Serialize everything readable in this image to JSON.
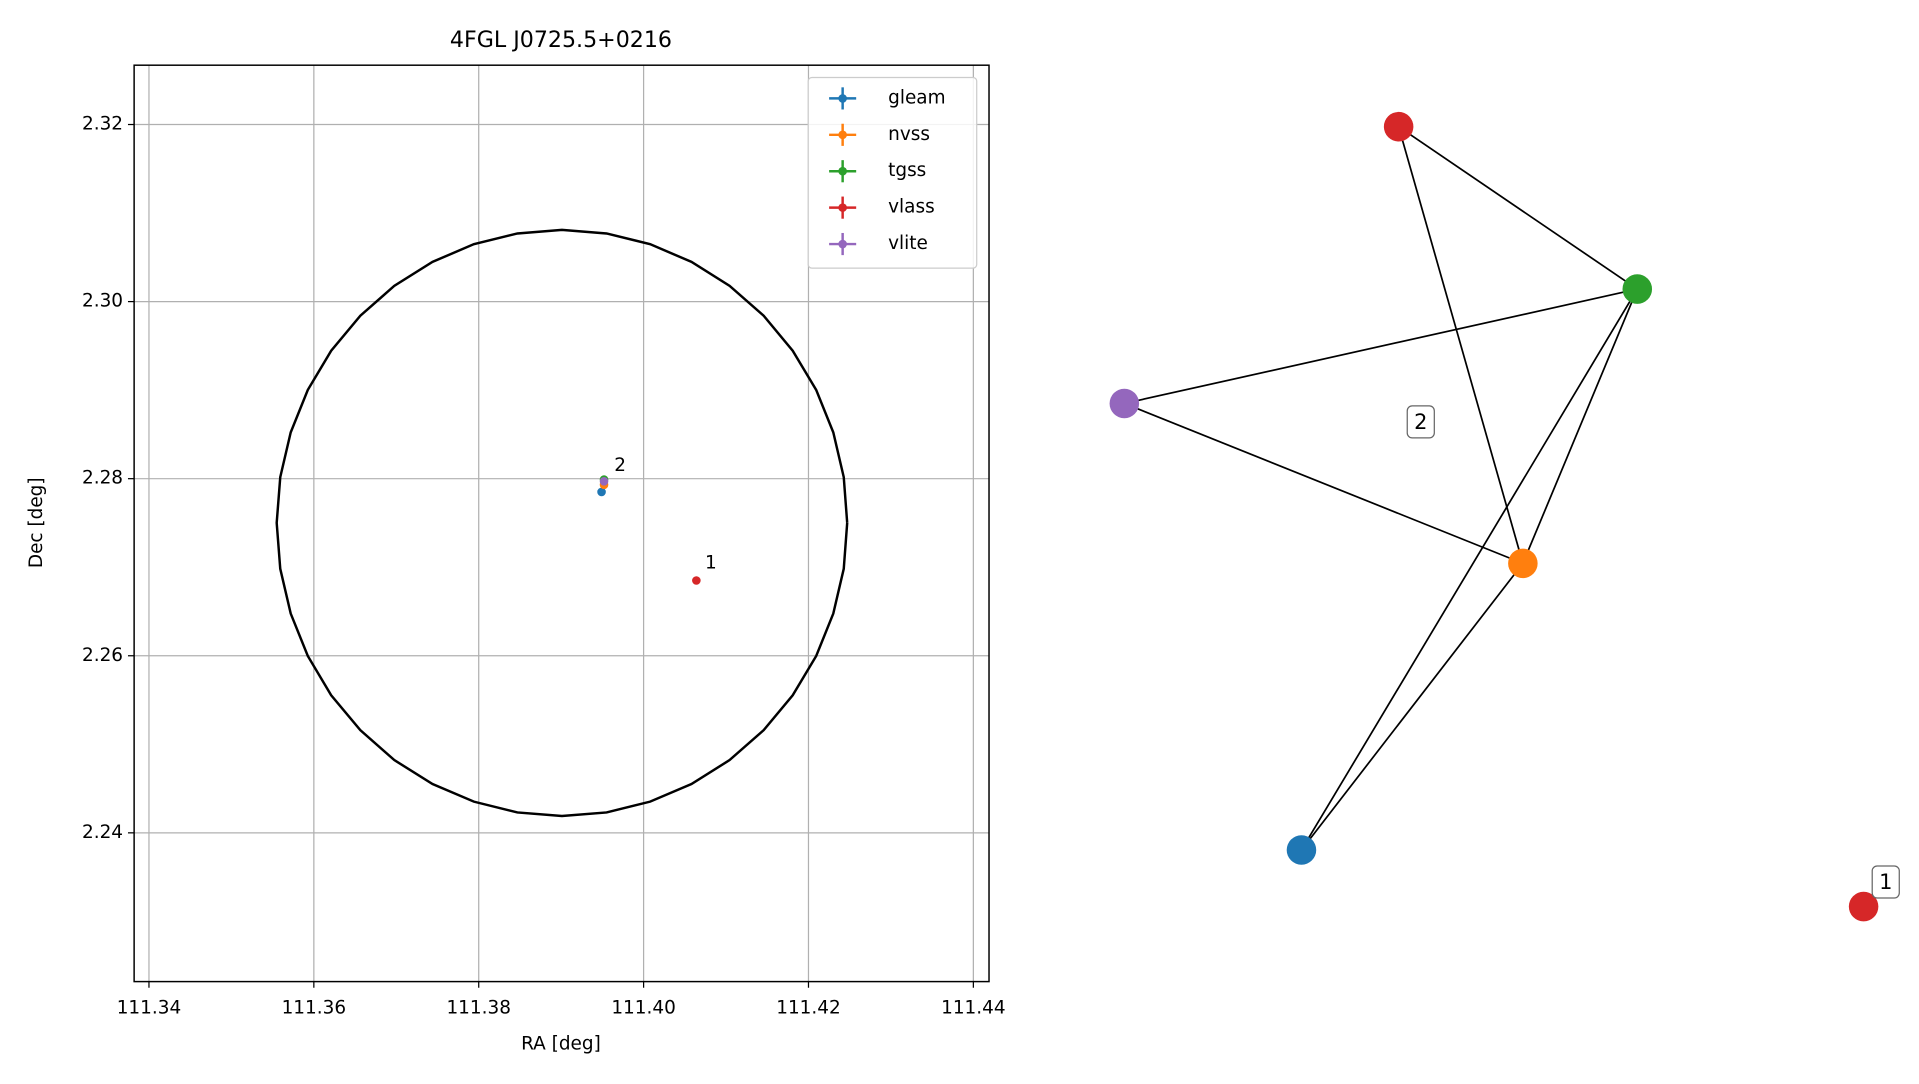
{
  "chart_data": [
    {
      "type": "scatter",
      "title": "4FGL J0725.5+0216",
      "x_label": "RA [deg]",
      "y_label": "Dec [deg]",
      "xlim": [
        111.3382,
        111.4419
      ],
      "ylim": [
        2.2232,
        2.3267
      ],
      "xticks": [
        111.34,
        111.36,
        111.38,
        {
          "value": 111.4,
          "label": "111.40"
        },
        111.42,
        111.44
      ],
      "yticks": [
        2.24,
        2.26,
        2.28,
        {
          "value": 2.3,
          "label": "2.30"
        },
        2.32
      ],
      "grid": true,
      "legend": "upper right",
      "circle": {
        "center": [
          111.3901,
          2.275
        ],
        "radius_x": 0.0346,
        "radius_y": 0.0331,
        "color": "#000000"
      },
      "series": [
        {
          "name": "gleam",
          "color": "#1f77b4",
          "x": [
            111.3949
          ],
          "values": [
            2.2785
          ]
        },
        {
          "name": "nvss",
          "color": "#ff7f0e",
          "x": [
            111.3952
          ],
          "values": [
            2.2793
          ]
        },
        {
          "name": "tgss",
          "color": "#2ca02c",
          "x": [
            111.3952
          ],
          "values": [
            2.2799
          ]
        },
        {
          "name": "vlass",
          "color": "#d62728",
          "x": [
            111.4064
          ],
          "values": [
            2.2685
          ]
        },
        {
          "name": "vlite",
          "color": "#9467bd",
          "x": [
            111.3952
          ],
          "values": [
            2.2797
          ]
        }
      ],
      "annotations": [
        {
          "text": "2",
          "x": 111.396,
          "y": 2.2803
        },
        {
          "text": "1",
          "x": 111.407,
          "y": 2.2693
        }
      ]
    },
    {
      "type": "network",
      "nodes": [
        {
          "color": "#d62728"
        },
        {
          "color": "#2ca02c"
        },
        {
          "color": "#9467bd"
        },
        {
          "color": "#ff7f0e"
        },
        {
          "color": "#1f77b4"
        },
        {
          "color": "#d62728"
        }
      ],
      "edges": [
        [
          0,
          1
        ],
        [
          0,
          3
        ],
        [
          2,
          1
        ],
        [
          2,
          3
        ],
        [
          1,
          4
        ],
        [
          1,
          3
        ],
        [
          3,
          4
        ]
      ],
      "annotations": [
        "2",
        "1"
      ]
    }
  ]
}
